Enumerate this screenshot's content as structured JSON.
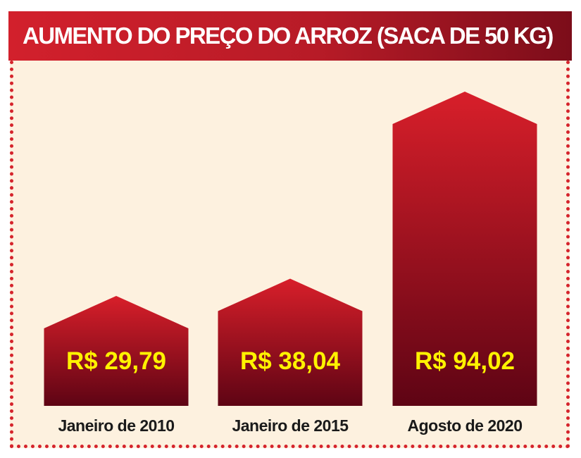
{
  "title": "AUMENTO DO PREÇO DO ARROZ (SACA DE 50 KG)",
  "colors": {
    "title_bar": "#d2202c",
    "bar_top": "#d81f2a",
    "bar_bottom": "#5e0414",
    "background": "#fdf1df",
    "value_text": "#fff200",
    "dotted_border": "#d5242c"
  },
  "chart_data": {
    "type": "bar",
    "title": "AUMENTO DO PREÇO DO ARROZ (SACA DE 50 KG)",
    "categories": [
      "Janeiro de 2010",
      "Janeiro de 2015",
      "Agosto de 2020"
    ],
    "values": [
      29.79,
      38.04,
      94.02
    ],
    "value_labels": [
      "R$ 29,79",
      "R$ 38,04",
      "R$ 94,02"
    ],
    "xlabel": "",
    "ylabel": "",
    "grid": false,
    "legend": "none"
  }
}
